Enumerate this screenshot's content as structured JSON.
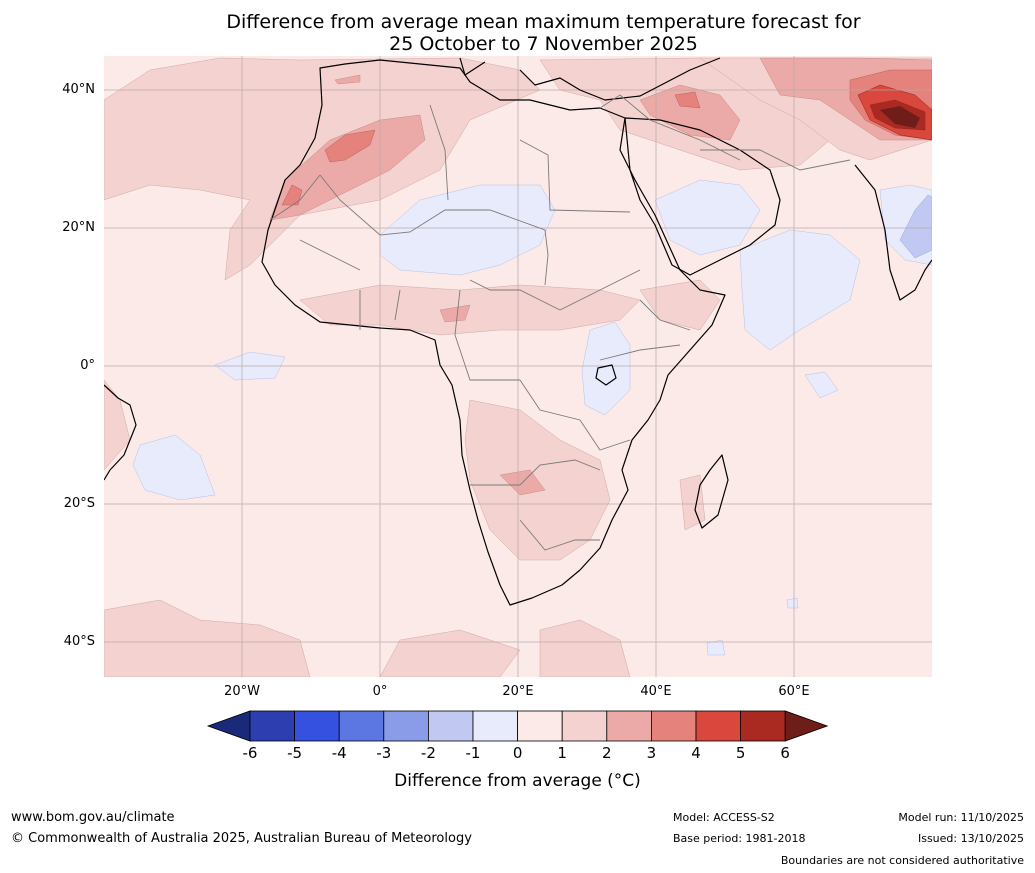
{
  "title": {
    "line1": "Difference from average mean maximum temperature forecast for",
    "line2": "25 October to 7 November 2025"
  },
  "map": {
    "lat_labels": [
      "40°N",
      "20°N",
      "0°",
      "20°S",
      "40°S"
    ],
    "lon_labels": [
      "20°W",
      "0°",
      "20°E",
      "40°E",
      "60°E"
    ],
    "background_color": "#fbeae8"
  },
  "colorbar": {
    "ticks": [
      "-6",
      "-5",
      "-4",
      "-3",
      "-2",
      "-1",
      "0",
      "1",
      "2",
      "3",
      "4",
      "5",
      "6"
    ],
    "colors": [
      "#1a2a7a",
      "#2d3fb0",
      "#3452df",
      "#5c76e2",
      "#8a9ce8",
      "#c1c9f3",
      "#e8ebfb",
      "#fbeae8",
      "#f4d2cf",
      "#ebaaa7",
      "#e5827b",
      "#d9473d",
      "#aa2a22",
      "#6e1d18"
    ],
    "label": "Difference from average (°C)"
  },
  "footer": {
    "website": "www.bom.gov.au/climate",
    "copyright": "© Commonwealth of Australia 2025, Australian Bureau of Meteorology",
    "model": "Model: ACCESS-S2",
    "base_period": "Base period: 1981-2018",
    "model_run": "Model run: 11/10/2025",
    "issued": "Issued: 13/10/2025",
    "disclaimer": "Boundaries are not considered authoritative"
  }
}
